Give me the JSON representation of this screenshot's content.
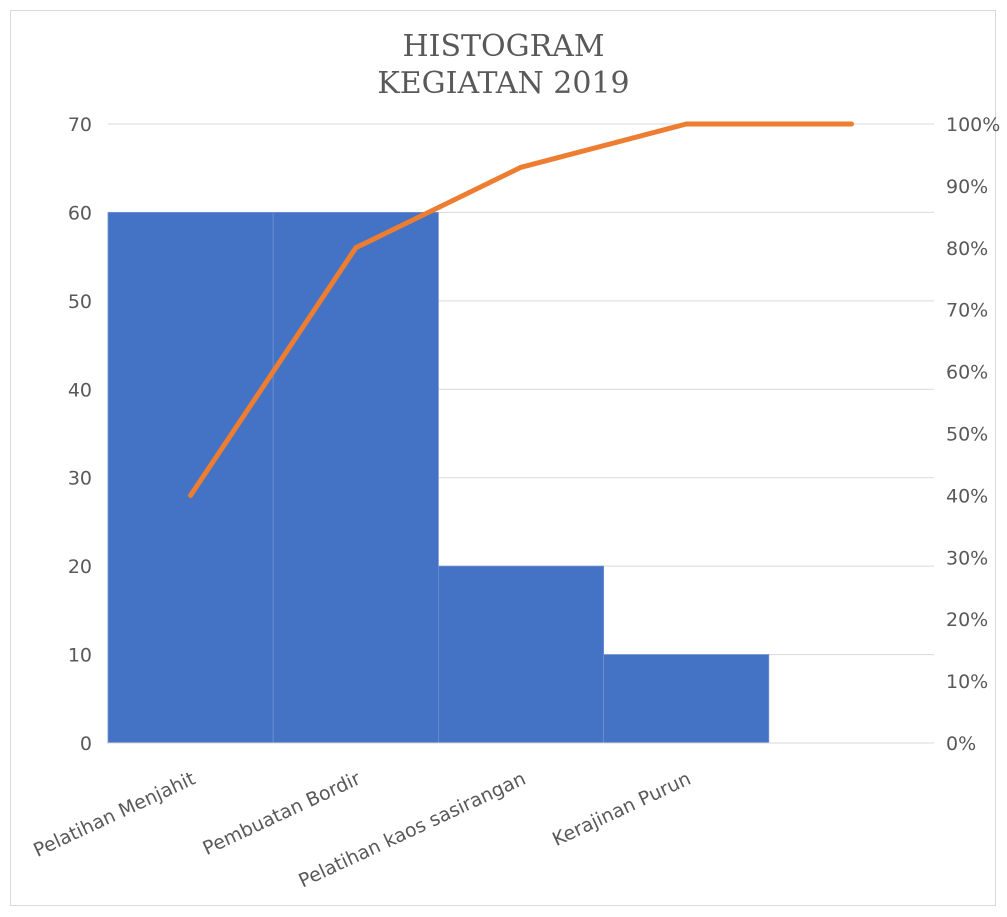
{
  "chart_data": {
    "type": "bar",
    "title": [
      "HISTOGRAM",
      "KEGIATAN 2019"
    ],
    "categories": [
      "Pelatihan Menjahit",
      "Pembuatan Bordir",
      "Pelatihan kaos sasirangan",
      "Kerajinan Purun",
      ""
    ],
    "series": [
      {
        "type": "bar",
        "axis": "left",
        "color": "#4472C4",
        "values": [
          60,
          60,
          20,
          10,
          0
        ]
      },
      {
        "type": "line",
        "axis": "right",
        "color": "#ED7D31",
        "values": [
          0.4,
          0.8,
          0.93,
          1.0,
          1.0
        ]
      }
    ],
    "y_left": {
      "min": 0,
      "max": 70,
      "ticks": [
        0,
        10,
        20,
        30,
        40,
        50,
        60,
        70
      ],
      "tick_labels": [
        "0",
        "10",
        "20",
        "30",
        "40",
        "50",
        "60",
        "70"
      ]
    },
    "y_right": {
      "min": 0,
      "max": 1,
      "ticks": [
        0,
        0.1,
        0.2,
        0.3,
        0.4,
        0.5,
        0.6,
        0.7,
        0.8,
        0.9,
        1.0
      ],
      "tick_labels": [
        "0%",
        "10%",
        "20%",
        "30%",
        "40%",
        "50%",
        "60%",
        "70%",
        "80%",
        "90%",
        "100%"
      ]
    },
    "grid": true,
    "legend": "none",
    "gridline_color": "#d9d9d9",
    "text_color": "#595959"
  }
}
